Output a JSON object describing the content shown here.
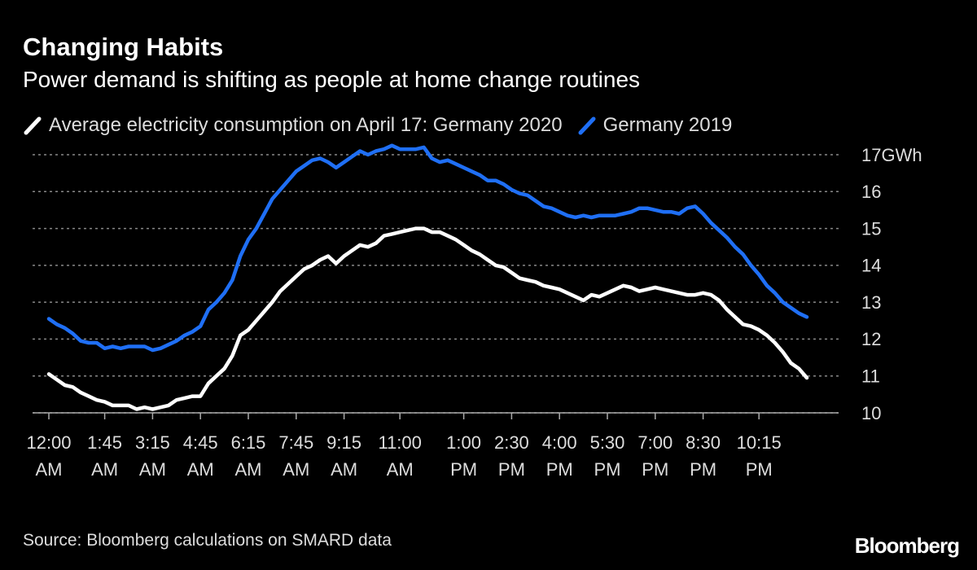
{
  "chart_data": {
    "type": "line",
    "title": "Changing Habits",
    "subtitle": "Power demand is shifting as people at home change routines",
    "source": "Source: Bloomberg calculations on SMARD data",
    "brand": "Bloomberg",
    "categories": [
      "12:00 AM",
      null,
      null,
      null,
      null,
      null,
      null,
      "1:45 AM",
      null,
      null,
      null,
      null,
      null,
      "3:15 AM",
      null,
      null,
      null,
      null,
      null,
      "4:45 AM",
      null,
      null,
      null,
      null,
      null,
      "6:15 AM",
      null,
      null,
      null,
      null,
      null,
      "7:45 AM",
      null,
      null,
      null,
      null,
      null,
      "9:15 AM",
      null,
      null,
      null,
      null,
      null,
      null,
      "11:00 AM",
      null,
      null,
      null,
      null,
      null,
      null,
      null,
      "1:00 PM",
      null,
      null,
      null,
      null,
      null,
      "2:30 PM",
      null,
      null,
      null,
      null,
      null,
      "4:00 PM",
      null,
      null,
      null,
      null,
      null,
      "5:30 PM",
      null,
      null,
      null,
      null,
      null,
      "7:00 PM",
      null,
      null,
      null,
      null,
      null,
      "8:30 PM",
      null,
      null,
      null,
      null,
      null,
      null,
      "10:15 PM",
      null,
      null,
      null,
      null,
      null,
      null
    ],
    "series": [
      {
        "name": "Average electricity consumption on April 17: Germany 2020",
        "color": "#ffffff",
        "values": [
          11.05,
          10.9,
          10.75,
          10.7,
          10.55,
          10.45,
          10.35,
          10.3,
          10.2,
          10.2,
          10.2,
          10.1,
          10.15,
          10.1,
          10.15,
          10.2,
          10.35,
          10.4,
          10.45,
          10.45,
          10.8,
          11.0,
          11.2,
          11.55,
          12.1,
          12.25,
          12.5,
          12.75,
          13.0,
          13.3,
          13.5,
          13.7,
          13.9,
          14.0,
          14.15,
          14.25,
          14.05,
          14.25,
          14.4,
          14.55,
          14.5,
          14.6,
          14.8,
          14.85,
          14.9,
          14.95,
          15.0,
          15.0,
          14.9,
          14.9,
          14.8,
          14.7,
          14.55,
          14.4,
          14.3,
          14.15,
          14.0,
          13.95,
          13.8,
          13.65,
          13.6,
          13.55,
          13.45,
          13.4,
          13.35,
          13.25,
          13.15,
          13.05,
          13.2,
          13.15,
          13.25,
          13.35,
          13.45,
          13.4,
          13.3,
          13.35,
          13.4,
          13.35,
          13.3,
          13.25,
          13.2,
          13.2,
          13.25,
          13.2,
          13.05,
          12.8,
          12.6,
          12.4,
          12.35,
          12.25,
          12.1,
          11.9,
          11.65,
          11.35,
          11.2,
          10.95
        ]
      },
      {
        "name": "Germany 2019",
        "color": "#1f6ff5",
        "values": [
          12.55,
          12.4,
          12.3,
          12.15,
          11.95,
          11.9,
          11.9,
          11.75,
          11.8,
          11.75,
          11.8,
          11.8,
          11.8,
          11.7,
          11.75,
          11.85,
          11.95,
          12.1,
          12.2,
          12.35,
          12.8,
          13.0,
          13.25,
          13.6,
          14.25,
          14.7,
          15.0,
          15.4,
          15.8,
          16.05,
          16.3,
          16.55,
          16.7,
          16.85,
          16.9,
          16.8,
          16.65,
          16.8,
          16.95,
          17.1,
          17.0,
          17.1,
          17.15,
          17.25,
          17.15,
          17.15,
          17.15,
          17.2,
          16.9,
          16.8,
          16.85,
          16.75,
          16.65,
          16.55,
          16.45,
          16.3,
          16.3,
          16.2,
          16.05,
          15.95,
          15.9,
          15.75,
          15.6,
          15.55,
          15.45,
          15.35,
          15.3,
          15.35,
          15.3,
          15.35,
          15.35,
          15.35,
          15.4,
          15.45,
          15.55,
          15.55,
          15.5,
          15.45,
          15.45,
          15.4,
          15.55,
          15.6,
          15.4,
          15.15,
          14.95,
          14.75,
          14.5,
          14.3,
          14.0,
          13.75,
          13.45,
          13.25,
          13.0,
          12.85,
          12.7,
          12.6
        ]
      }
    ],
    "ylim": [
      10,
      17
    ],
    "yticks": [
      10,
      11,
      12,
      13,
      14,
      15,
      16,
      {
        "value": 17,
        "label": "17GWh"
      }
    ],
    "grid": true
  }
}
